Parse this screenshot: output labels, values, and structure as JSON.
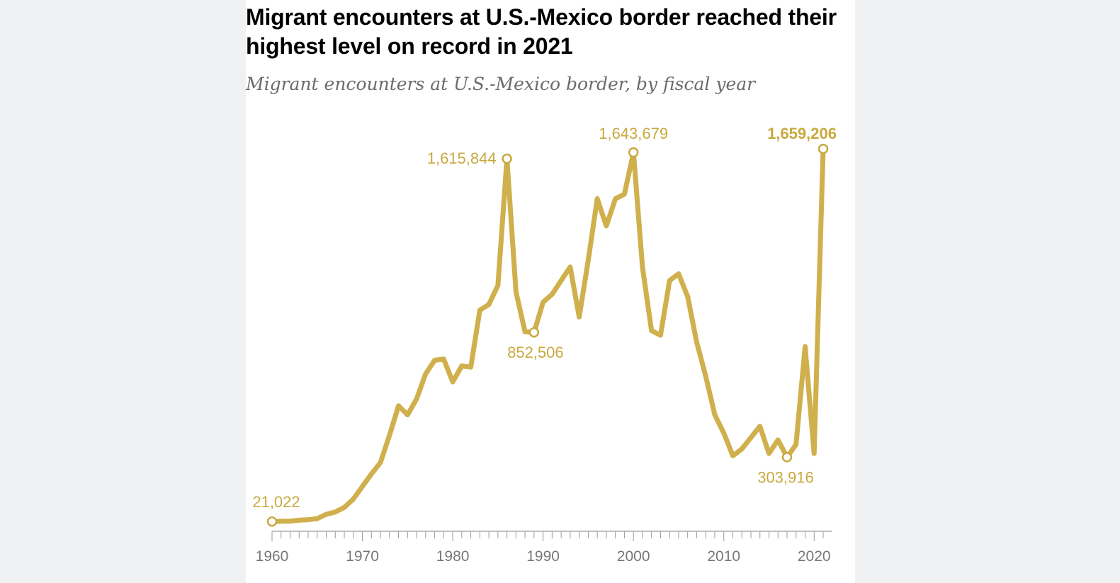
{
  "header": {
    "title": "Migrant encounters at U.S.-Mexico border reached their highest level on record in 2021",
    "subtitle": "Migrant encounters at U.S.-Mexico border, by fiscal year"
  },
  "colors": {
    "line": "#cfb04d",
    "label": "#c9a93f",
    "axis": "#9a9a9a",
    "tick_label": "#777777",
    "background": "#f0f1f3",
    "card": "#ffffff"
  },
  "chart_data": {
    "type": "line",
    "title": "Migrant encounters at U.S.-Mexico border reached their highest level on record in 2021",
    "subtitle": "Migrant encounters at U.S.-Mexico border, by fiscal year",
    "xlabel": "",
    "ylabel": "",
    "xlim": [
      1960,
      2021
    ],
    "ylim": [
      0,
      1700000
    ],
    "x_ticks": [
      1960,
      1970,
      1980,
      1990,
      2000,
      2010,
      2020
    ],
    "grid": false,
    "series": [
      {
        "name": "Migrant encounters",
        "x": [
          1960,
          1961,
          1962,
          1963,
          1964,
          1965,
          1966,
          1967,
          1968,
          1969,
          1970,
          1971,
          1972,
          1973,
          1974,
          1975,
          1976,
          1977,
          1978,
          1979,
          1980,
          1981,
          1982,
          1983,
          1984,
          1985,
          1986,
          1987,
          1988,
          1989,
          1990,
          1991,
          1992,
          1993,
          1994,
          1995,
          1996,
          1997,
          1998,
          1999,
          2000,
          2001,
          2002,
          2003,
          2004,
          2005,
          2006,
          2007,
          2008,
          2009,
          2010,
          2011,
          2012,
          2013,
          2014,
          2015,
          2016,
          2017,
          2018,
          2019,
          2020,
          2021
        ],
        "values": [
          21022,
          22000,
          23000,
          27000,
          29000,
          34000,
          53000,
          63000,
          83000,
          120000,
          175000,
          230000,
          280000,
          400000,
          530000,
          490000,
          560000,
          670000,
          730000,
          735000,
          635000,
          705000,
          700000,
          950000,
          975000,
          1060000,
          1615844,
          1030000,
          855000,
          852506,
          985000,
          1020000,
          1080000,
          1140000,
          920000,
          1170000,
          1440000,
          1320000,
          1440000,
          1460000,
          1643679,
          1140000,
          860000,
          840000,
          1080000,
          1110000,
          1010000,
          810000,
          660000,
          490000,
          410000,
          310000,
          340000,
          390000,
          440000,
          320000,
          380000,
          303916,
          360000,
          790000,
          320000,
          1659206
        ]
      }
    ],
    "annotations": [
      {
        "x": 1960,
        "value": 21022,
        "text": "21,022",
        "bold": false
      },
      {
        "x": 1986,
        "value": 1615844,
        "text": "1,615,844",
        "bold": false
      },
      {
        "x": 1989,
        "value": 852506,
        "text": "852,506",
        "bold": false
      },
      {
        "x": 2000,
        "value": 1643679,
        "text": "1,643,679",
        "bold": false
      },
      {
        "x": 2017,
        "value": 303916,
        "text": "303,916",
        "bold": false
      },
      {
        "x": 2021,
        "value": 1659206,
        "text": "1,659,206",
        "bold": true
      }
    ]
  }
}
